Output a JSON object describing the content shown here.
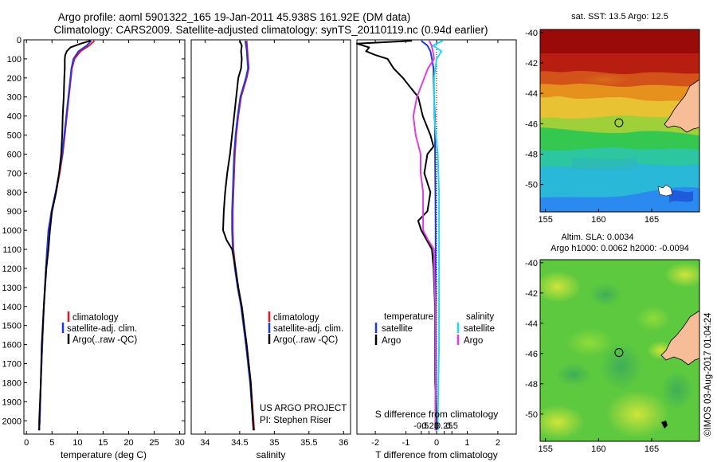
{
  "title": {
    "line1": "Argo profile: aoml 5901322_165 19-Jan-2011 45.938S 161.92E (DM data)",
    "line2": "Climatology: CARS2009. Satellite-adjusted climatology: synTS_20110119.nc (0.94d earlier)"
  },
  "credit": {
    "project": "US ARGO PROJECT",
    "pi": "PI: Stephen Riser",
    "stamp": "©IMOS 03-Aug-2017 01:04:24"
  },
  "colors": {
    "climatology": "#e8141e",
    "satellite": "#1f37e6",
    "argo": "#000000",
    "s_satellite": "#22d8f0",
    "s_argo": "#e03ce0"
  },
  "chart_data": [
    {
      "type": "line",
      "panel": "temperature",
      "xlabel": "temperature (deg C)",
      "ylabel": "",
      "xlim": [
        -0.5,
        31
      ],
      "ylim": [
        2070,
        0
      ],
      "xticks": [
        0,
        5,
        10,
        15,
        20,
        25,
        30
      ],
      "yticks": [
        0,
        100,
        200,
        300,
        400,
        500,
        600,
        700,
        800,
        900,
        1000,
        1100,
        1200,
        1300,
        1400,
        1500,
        1600,
        1700,
        1800,
        1900,
        2000
      ],
      "legend": [
        "climatology",
        "satellite-adj. clim.",
        "Argo(..raw -QC)"
      ],
      "series": [
        {
          "name": "climatology",
          "depth": [
            5,
            30,
            60,
            100,
            150,
            200,
            300,
            400,
            500,
            600,
            700,
            800,
            900,
            1000,
            1200,
            1400,
            1600,
            1800,
            2000,
            2050
          ],
          "values": [
            13.3,
            12.3,
            10.6,
            9.4,
            8.9,
            8.7,
            8.3,
            7.9,
            7.5,
            7.1,
            6.5,
            5.8,
            5.0,
            4.3,
            3.8,
            3.4,
            3.1,
            2.8,
            2.6,
            2.5
          ]
        },
        {
          "name": "satellite-adj. clim.",
          "depth": [
            5,
            30,
            60,
            100,
            150,
            200,
            300,
            400,
            500,
            600,
            700,
            800,
            900,
            1000,
            1200,
            1400,
            1600,
            1800,
            2000,
            2050
          ],
          "values": [
            12.7,
            11.8,
            10.2,
            9.2,
            8.8,
            8.6,
            8.2,
            7.8,
            7.4,
            7.0,
            6.4,
            5.7,
            4.9,
            4.3,
            3.8,
            3.4,
            3.1,
            2.8,
            2.6,
            2.5
          ]
        },
        {
          "name": "Argo(..raw -QC)",
          "depth": [
            5,
            20,
            40,
            60,
            80,
            100,
            150,
            200,
            300,
            400,
            500,
            600,
            700,
            800,
            900,
            1000,
            1100,
            1200,
            1400,
            1600,
            1800,
            2000,
            2050
          ],
          "values": [
            12.5,
            10.6,
            8.6,
            7.9,
            7.6,
            7.5,
            7.5,
            7.4,
            7.3,
            7.1,
            7.0,
            6.8,
            6.4,
            5.8,
            5.0,
            4.6,
            4.3,
            3.9,
            3.4,
            3.0,
            2.8,
            2.5,
            2.5
          ]
        }
      ]
    },
    {
      "type": "line",
      "panel": "salinity",
      "xlabel": "salinity",
      "ylabel": "",
      "xlim": [
        33.8,
        36.1
      ],
      "ylim": [
        2070,
        0
      ],
      "xticks": [
        34,
        34.5,
        35,
        35.5,
        36
      ],
      "legend": [
        "climatology",
        "satellite-adj. clim.",
        "Argo(..raw -QC)"
      ],
      "series": [
        {
          "name": "climatology",
          "depth": [
            5,
            50,
            100,
            150,
            200,
            300,
            400,
            500,
            600,
            700,
            800,
            900,
            1000,
            1100,
            1200,
            1300,
            1400,
            1600,
            1800,
            2000,
            2050
          ],
          "values": [
            34.6,
            34.61,
            34.62,
            34.63,
            34.6,
            34.52,
            34.48,
            34.45,
            34.43,
            34.42,
            34.41,
            34.4,
            34.4,
            34.41,
            34.44,
            34.48,
            34.53,
            34.6,
            34.66,
            34.7,
            34.71
          ]
        },
        {
          "name": "satellite-adj. clim.",
          "depth": [
            5,
            50,
            100,
            150,
            200,
            300,
            400,
            500,
            600,
            700,
            800,
            900,
            1000,
            1100,
            1200,
            1300,
            1400,
            1600,
            1800,
            2000,
            2050
          ],
          "values": [
            34.58,
            34.6,
            34.61,
            34.62,
            34.59,
            34.51,
            34.47,
            34.44,
            34.42,
            34.41,
            34.4,
            34.39,
            34.39,
            34.4,
            34.43,
            34.47,
            34.52,
            34.59,
            34.65,
            34.69,
            34.7
          ]
        },
        {
          "name": "Argo(..raw -QC)",
          "depth": [
            5,
            30,
            60,
            100,
            150,
            200,
            300,
            400,
            500,
            600,
            700,
            800,
            900,
            1000,
            1050,
            1100,
            1200,
            1300,
            1400,
            1600,
            1800,
            2000,
            2050
          ],
          "values": [
            34.5,
            34.53,
            34.52,
            34.53,
            34.52,
            34.48,
            34.45,
            34.42,
            34.39,
            34.36,
            34.32,
            34.29,
            34.27,
            34.26,
            34.31,
            34.39,
            34.44,
            34.48,
            34.53,
            34.6,
            34.66,
            34.69,
            34.7
          ]
        }
      ]
    },
    {
      "type": "line",
      "panel": "difference from climatology",
      "xlabel": "T difference from climatology",
      "xlabel_top": "S difference from climatology",
      "ylabel": "",
      "xlim": [
        -2.6,
        2.6
      ],
      "ylim": [
        2070,
        0
      ],
      "xticks": [
        -2,
        -1,
        0,
        1,
        2
      ],
      "xticks_top": [
        -0.5,
        -0.25,
        0,
        0.25,
        0.5
      ],
      "legend": {
        "temperature_title": "temperature",
        "salinity_title": "salinity",
        "t_items": [
          "satellite",
          "Argo"
        ],
        "s_items": [
          "satellite",
          "Argo"
        ]
      },
      "series": [
        {
          "name": "temperature satellite",
          "depth": [
            5,
            30,
            60,
            100,
            150,
            200,
            300,
            400,
            500,
            600,
            800,
            1000,
            1200,
            1600,
            2000,
            2050
          ],
          "values": [
            -0.5,
            -0.3,
            -0.2,
            -0.15,
            -0.1,
            -0.1,
            -0.08,
            -0.06,
            -0.05,
            -0.05,
            -0.04,
            -0.03,
            -0.03,
            -0.02,
            -0.02,
            -0.02
          ]
        },
        {
          "name": "temperature Argo",
          "depth": [
            5,
            20,
            40,
            60,
            80,
            100,
            150,
            200,
            260,
            300,
            400,
            500,
            560,
            600,
            700,
            800,
            900,
            950,
            1000,
            1100,
            1200,
            1400,
            1600,
            1800,
            2000,
            2050
          ],
          "values": [
            -0.8,
            -2.6,
            -2.2,
            -2.3,
            -2.0,
            -1.6,
            -1.4,
            -1.1,
            -0.8,
            -0.6,
            -0.45,
            -0.2,
            -0.1,
            -0.3,
            -0.4,
            -0.2,
            -0.3,
            -0.6,
            -0.5,
            -0.15,
            -0.1,
            -0.05,
            -0.05,
            -0.05,
            0,
            0
          ]
        },
        {
          "name": "salinity satellite",
          "depth": [
            5,
            30,
            60,
            100,
            200,
            400,
            600,
            800,
            1000,
            1200,
            1600,
            2000,
            2050
          ],
          "values": [
            0.05,
            -0.03,
            0.04,
            0.0,
            -0.02,
            -0.02,
            0.01,
            0.02,
            0.02,
            0.02,
            0.02,
            0.01,
            0.01
          ]
        },
        {
          "name": "salinity Argo",
          "depth": [
            5,
            30,
            60,
            100,
            150,
            200,
            300,
            400,
            500,
            600,
            700,
            800,
            900,
            1000,
            1050,
            1100,
            1200,
            1400,
            1600,
            1800,
            2000,
            2050
          ],
          "values": [
            -0.06,
            -0.04,
            -0.03,
            -0.02,
            -0.07,
            -0.1,
            -0.16,
            -0.19,
            -0.17,
            -0.13,
            -0.13,
            -0.11,
            -0.11,
            -0.11,
            -0.07,
            -0.02,
            -0.02,
            -0.01,
            -0.01,
            -0.01,
            -0.01,
            -0.01
          ]
        }
      ]
    },
    {
      "type": "heatmap",
      "panel": "satellite SST map",
      "title": "sat. SST: 13.5 Argo: 12.5",
      "xlim": [
        154.5,
        169.5
      ],
      "ylim": [
        -51.8,
        -39.8
      ],
      "xticks": [
        155,
        160,
        165
      ],
      "yticks": [
        -40,
        -42,
        -44,
        -46,
        -48,
        -50
      ],
      "marker": {
        "lon": 161.92,
        "lat": -45.938
      }
    },
    {
      "type": "heatmap",
      "panel": "altimetry SLA map",
      "title": "Altim. SLA: 0.0034",
      "subtitle": "Argo h1000: 0.0062 h2000: -0.0094",
      "xlim": [
        154.5,
        169.5
      ],
      "ylim": [
        -51.8,
        -39.8
      ],
      "xticks": [
        155,
        160,
        165
      ],
      "yticks": [
        -40,
        -42,
        -44,
        -46,
        -48,
        -50
      ],
      "marker": {
        "lon": 161.92,
        "lat": -45.938
      }
    }
  ]
}
